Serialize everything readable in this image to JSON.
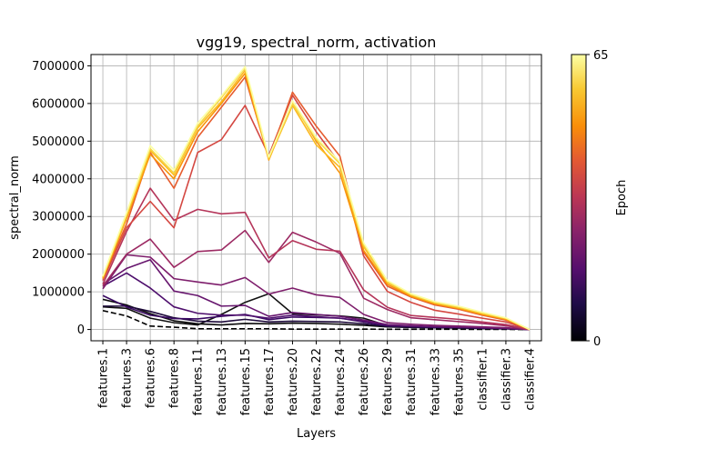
{
  "chart_data": {
    "type": "line",
    "title": "vgg19, spectral_norm, activation",
    "xlabel": "Layers",
    "ylabel": "spectral_norm",
    "ylim": [
      -300000,
      7300000
    ],
    "yticks": [
      0,
      1000000,
      2000000,
      3000000,
      4000000,
      5000000,
      6000000,
      7000000
    ],
    "grid": true,
    "categories": [
      "features.1",
      "features.3",
      "features.6",
      "features.8",
      "features.11",
      "features.13",
      "features.15",
      "features.17",
      "features.20",
      "features.22",
      "features.24",
      "features.26",
      "features.29",
      "features.31",
      "features.33",
      "features.35",
      "classifier.1",
      "classifier.3",
      "classifier.4"
    ],
    "colorbar": {
      "label": "Epoch",
      "min": 0,
      "max": 65,
      "min_label": "0",
      "max_label": "65",
      "colormap": "inferno"
    },
    "series": [
      {
        "epoch": 0,
        "color": "#000000",
        "dashed": true,
        "values": [
          500000,
          360000,
          90000,
          60000,
          20000,
          20000,
          20000,
          20000,
          10000,
          10000,
          10000,
          10000,
          5000,
          5000,
          5000,
          5000,
          3000,
          2000,
          0
        ]
      },
      {
        "epoch": 1,
        "color": "#0a0a0a",
        "values": [
          800000,
          650000,
          420000,
          230000,
          150000,
          120000,
          160000,
          150000,
          170000,
          160000,
          140000,
          110000,
          70000,
          55000,
          45000,
          40000,
          30000,
          20000,
          0
        ]
      },
      {
        "epoch": 2,
        "color": "#111111",
        "values": [
          600000,
          560000,
          300000,
          180000,
          120000,
          400000,
          720000,
          950000,
          420000,
          390000,
          360000,
          300000,
          100000,
          60000,
          50000,
          40000,
          30000,
          20000,
          0
        ]
      },
      {
        "epoch": 4,
        "color": "#1d0a3a",
        "values": [
          620000,
          620000,
          480000,
          310000,
          220000,
          200000,
          270000,
          200000,
          220000,
          210000,
          200000,
          150000,
          80000,
          60000,
          50000,
          45000,
          30000,
          20000,
          0
        ]
      },
      {
        "epoch": 8,
        "color": "#3a0963",
        "values": [
          900000,
          600000,
          380000,
          290000,
          280000,
          350000,
          400000,
          260000,
          330000,
          320000,
          300000,
          200000,
          100000,
          80000,
          60000,
          55000,
          40000,
          25000,
          0
        ]
      },
      {
        "epoch": 11,
        "color": "#4e0f6d",
        "values": [
          1150000,
          1500000,
          1100000,
          600000,
          430000,
          380000,
          380000,
          300000,
          380000,
          340000,
          300000,
          220000,
          120000,
          90000,
          70000,
          60000,
          45000,
          30000,
          0
        ]
      },
      {
        "epoch": 14,
        "color": "#67166e",
        "values": [
          1200000,
          1620000,
          1850000,
          1020000,
          900000,
          620000,
          640000,
          350000,
          450000,
          400000,
          350000,
          250000,
          130000,
          100000,
          80000,
          70000,
          50000,
          35000,
          0
        ]
      },
      {
        "epoch": 17,
        "color": "#7e1e6c",
        "values": [
          1080000,
          1980000,
          1920000,
          1350000,
          1260000,
          1180000,
          1380000,
          940000,
          1100000,
          920000,
          850000,
          400000,
          180000,
          140000,
          110000,
          90000,
          70000,
          50000,
          0
        ]
      },
      {
        "epoch": 21,
        "color": "#9c2a63",
        "values": [
          1150000,
          2000000,
          2400000,
          1650000,
          2070000,
          2110000,
          2630000,
          1780000,
          2580000,
          2320000,
          2020000,
          830000,
          530000,
          310000,
          260000,
          210000,
          160000,
          100000,
          0
        ]
      },
      {
        "epoch": 25,
        "color": "#b5365a",
        "values": [
          1200000,
          2600000,
          3750000,
          2900000,
          3190000,
          3070000,
          3110000,
          1900000,
          2360000,
          2130000,
          2080000,
          1050000,
          590000,
          370000,
          320000,
          270000,
          200000,
          130000,
          0
        ]
      },
      {
        "epoch": 30,
        "color": "#d44842",
        "values": [
          1300000,
          2700000,
          3400000,
          2700000,
          4700000,
          5040000,
          5950000,
          4620000,
          6220000,
          5250000,
          4400000,
          1950000,
          1010000,
          720000,
          510000,
          410000,
          300000,
          200000,
          0
        ]
      },
      {
        "epoch": 36,
        "color": "#e65d2f",
        "values": [
          1350000,
          2800000,
          4700000,
          3750000,
          5100000,
          5900000,
          6700000,
          4550000,
          6300000,
          5400000,
          4600000,
          2050000,
          1150000,
          860000,
          650000,
          540000,
          380000,
          250000,
          0
        ]
      },
      {
        "epoch": 44,
        "color": "#f9950a",
        "values": [
          1350000,
          2950000,
          4650000,
          4000000,
          5250000,
          6000000,
          6800000,
          4500000,
          6050000,
          5000000,
          4150000,
          2100000,
          1200000,
          880000,
          680000,
          560000,
          400000,
          270000,
          0
        ]
      },
      {
        "epoch": 52,
        "color": "#fbba1f",
        "values": [
          1380000,
          3000000,
          4750000,
          4100000,
          5350000,
          6050000,
          6880000,
          4520000,
          5950000,
          4900000,
          4300000,
          2200000,
          1250000,
          910000,
          700000,
          580000,
          420000,
          290000,
          0
        ]
      },
      {
        "epoch": 58,
        "color": "#f6d746",
        "values": [
          1400000,
          3050000,
          4800000,
          4150000,
          5400000,
          6150000,
          6950000,
          4550000,
          6000000,
          5050000,
          4400000,
          2250000,
          1270000,
          930000,
          720000,
          600000,
          440000,
          300000,
          0
        ]
      },
      {
        "epoch": 65,
        "color": "#fcffa4",
        "values": [
          1420000,
          3100000,
          4880000,
          4230000,
          5480000,
          6200000,
          6980000,
          4580000,
          6070000,
          5100000,
          4450000,
          2300000,
          1300000,
          950000,
          740000,
          620000,
          460000,
          310000,
          0
        ]
      }
    ]
  }
}
